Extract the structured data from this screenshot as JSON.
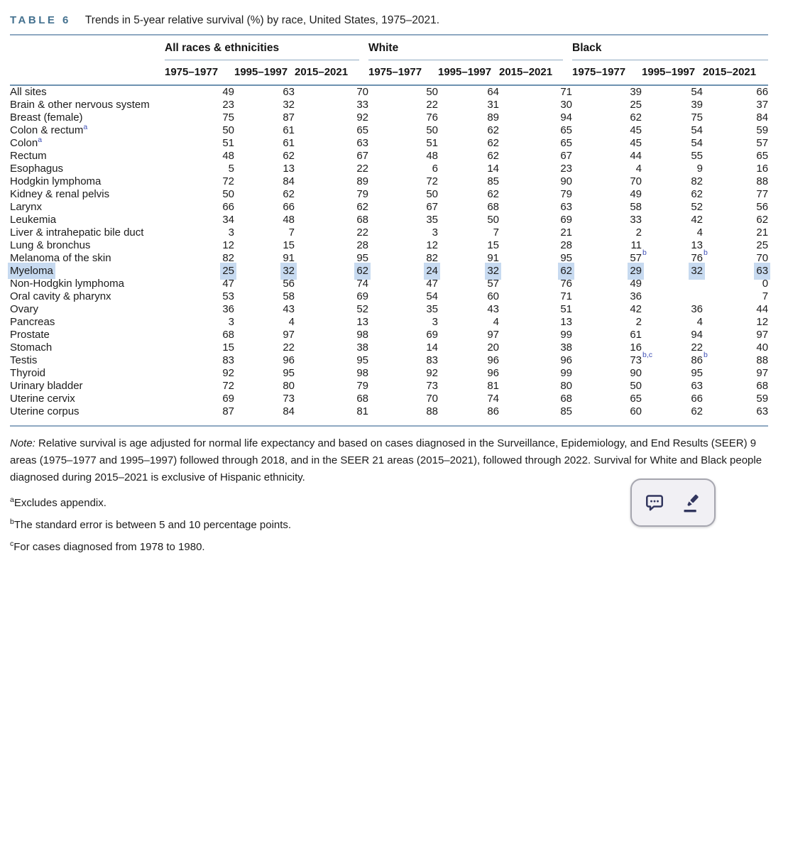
{
  "title": {
    "label": "TABLE 6",
    "caption": "Trends in 5-year relative survival (%) by race, United States, 1975–2021."
  },
  "table": {
    "column_groups": [
      {
        "label": "All races & ethnicities"
      },
      {
        "label": "White"
      },
      {
        "label": "Black"
      }
    ],
    "year_headers": [
      "1975–1977",
      "1995–1997",
      "2015–2021"
    ],
    "rows": [
      {
        "label": "All sites",
        "values": [
          "49",
          "63",
          "70",
          "50",
          "64",
          "71",
          "39",
          "54",
          "66"
        ]
      },
      {
        "label": "Brain & other nervous system",
        "values": [
          "23",
          "32",
          "33",
          "22",
          "31",
          "30",
          "25",
          "39",
          "37"
        ]
      },
      {
        "label": "Breast (female)",
        "values": [
          "75",
          "87",
          "92",
          "76",
          "89",
          "94",
          "62",
          "75",
          "84"
        ]
      },
      {
        "label": "Colon & rectum",
        "label_sup": "a",
        "values": [
          "50",
          "61",
          "65",
          "50",
          "62",
          "65",
          "45",
          "54",
          "59"
        ]
      },
      {
        "label": "Colon",
        "label_sup": "a",
        "values": [
          "51",
          "61",
          "63",
          "51",
          "62",
          "65",
          "45",
          "54",
          "57"
        ]
      },
      {
        "label": "Rectum",
        "values": [
          "48",
          "62",
          "67",
          "48",
          "62",
          "67",
          "44",
          "55",
          "65"
        ]
      },
      {
        "label": "Esophagus",
        "values": [
          "5",
          "13",
          "22",
          "6",
          "14",
          "23",
          "4",
          "9",
          "16"
        ]
      },
      {
        "label": "Hodgkin lymphoma",
        "values": [
          "72",
          "84",
          "89",
          "72",
          "85",
          "90",
          "70",
          "82",
          "88"
        ]
      },
      {
        "label": "Kidney & renal pelvis",
        "values": [
          "50",
          "62",
          "79",
          "50",
          "62",
          "79",
          "49",
          "62",
          "77"
        ]
      },
      {
        "label": "Larynx",
        "values": [
          "66",
          "66",
          "62",
          "67",
          "68",
          "63",
          "58",
          "52",
          "56"
        ]
      },
      {
        "label": "Leukemia",
        "values": [
          "34",
          "48",
          "68",
          "35",
          "50",
          "69",
          "33",
          "42",
          "62"
        ]
      },
      {
        "label": "Liver & intrahepatic bile duct",
        "values": [
          "3",
          "7",
          "22",
          "3",
          "7",
          "21",
          "2",
          "4",
          "21"
        ]
      },
      {
        "label": "Lung & bronchus",
        "values": [
          "12",
          "15",
          "28",
          "12",
          "15",
          "28",
          "11",
          "13",
          "25"
        ]
      },
      {
        "label": "Melanoma of the skin",
        "values": [
          "82",
          "91",
          "95",
          "82",
          "91",
          "95",
          "57",
          "76",
          "70"
        ],
        "value_sups": {
          "6": "b",
          "7": "b"
        }
      },
      {
        "label": "Myeloma",
        "highlighted": true,
        "values": [
          "25",
          "32",
          "62",
          "24",
          "32",
          "62",
          "29",
          "32",
          "63"
        ]
      },
      {
        "label": "Non-Hodgkin lymphoma",
        "values": [
          "47",
          "56",
          "74",
          "47",
          "57",
          "76",
          "49",
          "",
          "0"
        ],
        "obscured_by_popup": {
          "7": "hidden",
          "8": "partially visible"
        }
      },
      {
        "label": "Oral cavity & pharynx",
        "values": [
          "53",
          "58",
          "69",
          "54",
          "60",
          "71",
          "36",
          "",
          "7"
        ],
        "obscured_by_popup": {
          "7": "hidden",
          "8": "partially visible"
        }
      },
      {
        "label": "Ovary",
        "values": [
          "36",
          "43",
          "52",
          "35",
          "43",
          "51",
          "42",
          "36",
          "44"
        ]
      },
      {
        "label": "Pancreas",
        "values": [
          "3",
          "4",
          "13",
          "3",
          "4",
          "13",
          "2",
          "4",
          "12"
        ]
      },
      {
        "label": "Prostate",
        "values": [
          "68",
          "97",
          "98",
          "69",
          "97",
          "99",
          "61",
          "94",
          "97"
        ]
      },
      {
        "label": "Stomach",
        "values": [
          "15",
          "22",
          "38",
          "14",
          "20",
          "38",
          "16",
          "22",
          "40"
        ]
      },
      {
        "label": "Testis",
        "values": [
          "83",
          "96",
          "95",
          "83",
          "96",
          "96",
          "73",
          "86",
          "88"
        ],
        "value_sups": {
          "6": "b,c",
          "7": "b"
        }
      },
      {
        "label": "Thyroid",
        "values": [
          "92",
          "95",
          "98",
          "92",
          "96",
          "99",
          "90",
          "95",
          "97"
        ]
      },
      {
        "label": "Urinary bladder",
        "values": [
          "72",
          "80",
          "79",
          "73",
          "81",
          "80",
          "50",
          "63",
          "68"
        ]
      },
      {
        "label": "Uterine cervix",
        "values": [
          "69",
          "73",
          "68",
          "70",
          "74",
          "68",
          "65",
          "66",
          "59"
        ]
      },
      {
        "label": "Uterine corpus",
        "values": [
          "87",
          "84",
          "81",
          "88",
          "86",
          "85",
          "60",
          "62",
          "63"
        ]
      }
    ]
  },
  "notes": {
    "note_label": "Note:",
    "note_text": "Relative survival is age adjusted for normal life expectancy and based on cases diagnosed in the Surveillance, Epidemiology, and End Results (SEER) 9 areas (1975–1977 and 1995–1997) followed through 2018, and in the SEER 21 areas (2015–2021), followed through 2022. Survival for White and Black people diagnosed during 2015–2021 is exclusive of Hispanic ethnicity.",
    "footnotes": [
      {
        "marker": "a",
        "text": "Excludes appendix."
      },
      {
        "marker": "b",
        "text": "The standard error is between 5 and 10 percentage points."
      },
      {
        "marker": "c",
        "text": "For cases diagnosed from 1978 to 1980."
      }
    ]
  },
  "popup": {
    "buttons": [
      {
        "icon": "comment-icon"
      },
      {
        "icon": "highlighter-icon"
      }
    ]
  },
  "colors": {
    "table_label_blue": "#44718f",
    "rule_blue": "#8fa9c2",
    "header_rule_blue": "#6e92b0",
    "selection_highlight": "#c7daf0",
    "superscript_blue": "#3d4eb5",
    "popup_icon_navy": "#32365e",
    "popup_background": "#f1f0f4"
  }
}
